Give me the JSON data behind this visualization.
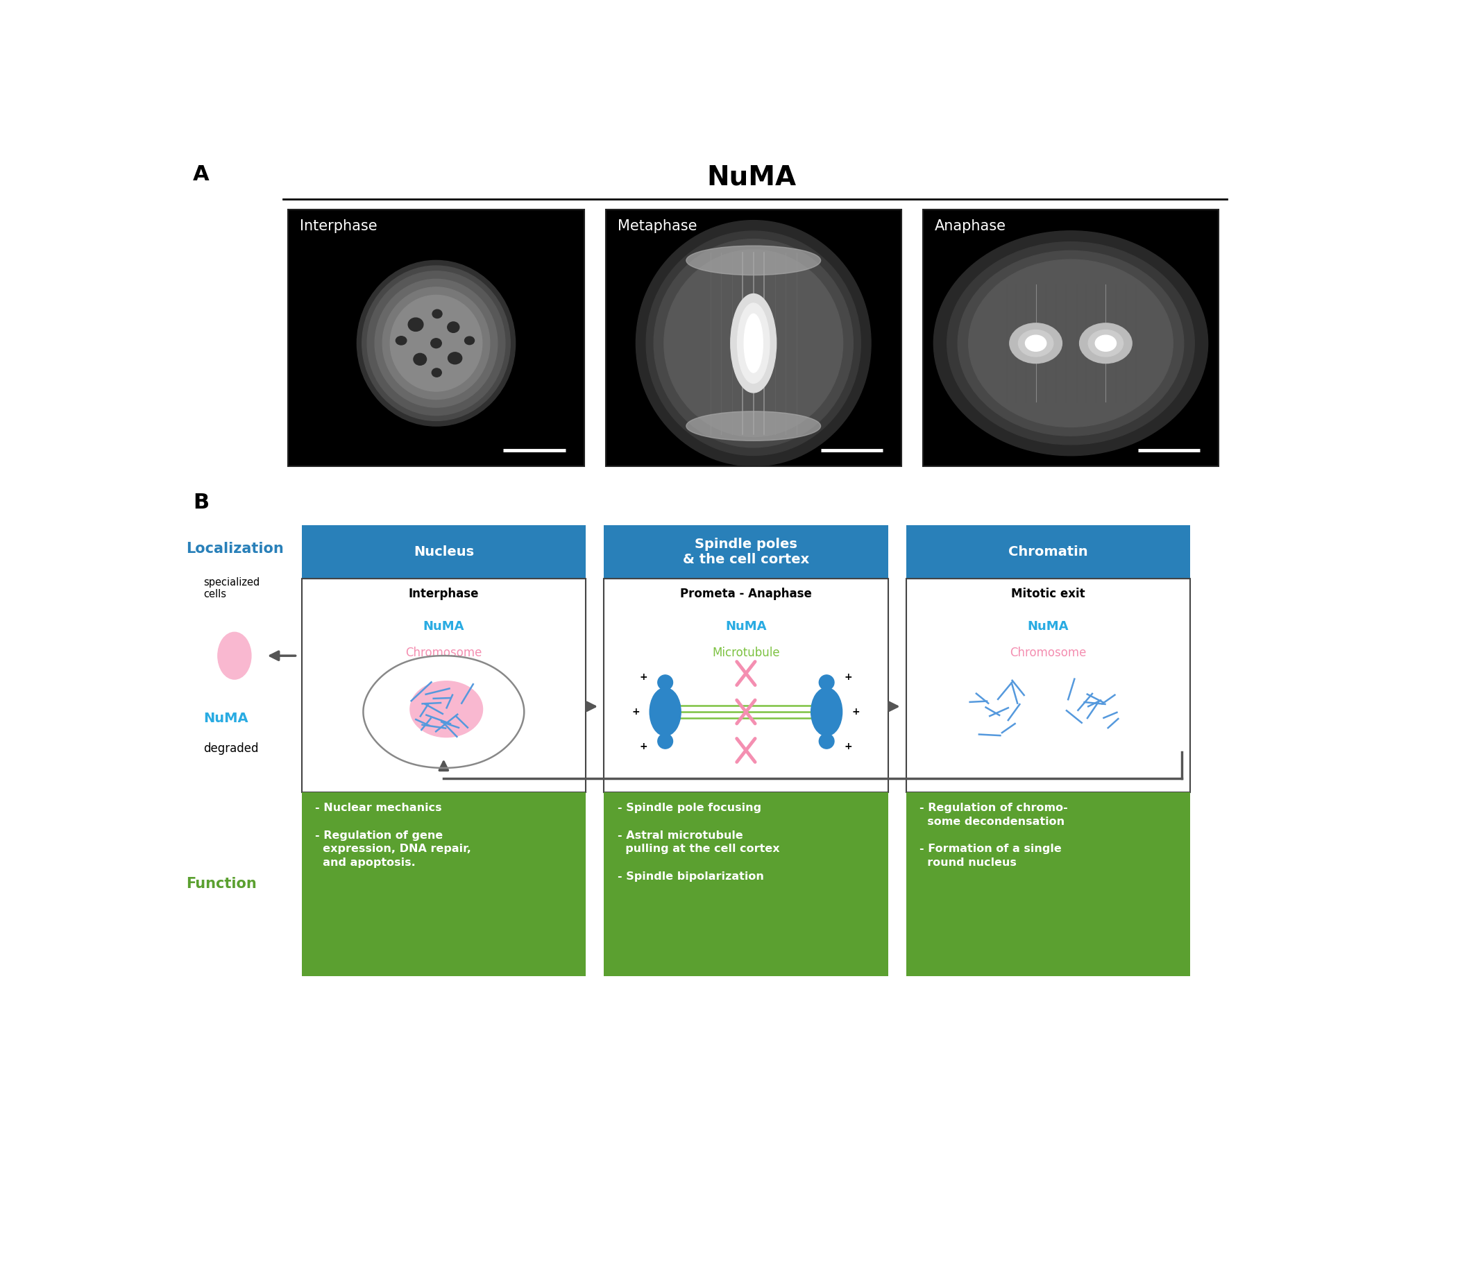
{
  "title": "NuMA",
  "panel_a_label": "A",
  "panel_b_label": "B",
  "panel_a_images": [
    "Interphase",
    "Metaphase",
    "Anaphase"
  ],
  "header_blue": "#2980B9",
  "green_color": "#5BA030",
  "light_pink": "#F9A8C9",
  "pink_fill": "#F472A8",
  "numa_color": "#29ABE2",
  "chromosome_color": "#F48FB1",
  "microtubule_color": "#7DC242",
  "localization_color": "#2980B9",
  "function_color": "#5BA030",
  "arrow_color": "#666666",
  "localization_labels": [
    "Nucleus",
    "Spindle poles\n& the cell cortex",
    "Chromatin"
  ],
  "phase_labels": [
    "Interphase",
    "Prometa - Anaphase",
    "Mitotic exit"
  ],
  "function_text_1": "- Nuclear mechanics\n\n- Regulation of gene\n  expression, DNA repair,\n  and apoptosis.",
  "function_text_2": "- Spindle pole focusing\n\n- Astral microtubule\n  pulling at the cell cortex\n\n- Spindle bipolarization",
  "function_text_3": "- Regulation of chromo-\n  some decondensation\n\n- Formation of a single\n  round nucleus",
  "specialized_cells_text": "specialized\ncells",
  "numa_degraded_text1": "NuMA",
  "numa_degraded_text2": "degraded",
  "localization_text": "Localization",
  "function_label": "Function",
  "bg_white": "#FFFFFF"
}
